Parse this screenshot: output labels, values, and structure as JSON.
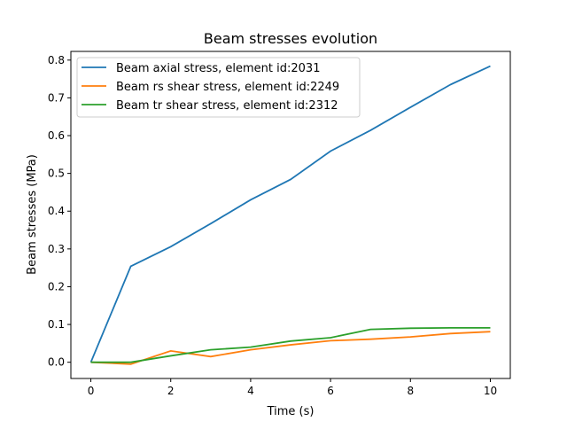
{
  "chart_data": {
    "type": "line",
    "title": "Beam stresses evolution",
    "xlabel": "Time (s)",
    "ylabel": "Beam stresses (MPa)",
    "xlim": [
      -0.5,
      10.5
    ],
    "ylim": [
      -0.043,
      0.823
    ],
    "xticks": [
      0,
      2,
      4,
      6,
      8,
      10
    ],
    "yticks": [
      0.0,
      0.1,
      0.2,
      0.3,
      0.4,
      0.5,
      0.6,
      0.7,
      0.8
    ],
    "grid": false,
    "legend_position": "upper-left",
    "x": [
      0,
      1,
      2,
      3,
      4,
      5,
      6,
      7,
      8,
      9,
      10
    ],
    "series": [
      {
        "name": "Beam axial stress, element id:2031",
        "color": "#1f77b4",
        "values": [
          0.0,
          0.254,
          0.306,
          0.367,
          0.43,
          0.484,
          0.559,
          0.614,
          0.675,
          0.735,
          0.784
        ]
      },
      {
        "name": "Beam rs shear stress, element id:2249",
        "color": "#ff7f0e",
        "values": [
          0.0,
          -0.005,
          0.03,
          0.015,
          0.033,
          0.046,
          0.057,
          0.061,
          0.067,
          0.076,
          0.081
        ]
      },
      {
        "name": "Beam tr shear stress, element id:2312",
        "color": "#2ca02c",
        "values": [
          0.0,
          0.0,
          0.017,
          0.033,
          0.04,
          0.056,
          0.065,
          0.087,
          0.09,
          0.091,
          0.091
        ]
      }
    ]
  }
}
